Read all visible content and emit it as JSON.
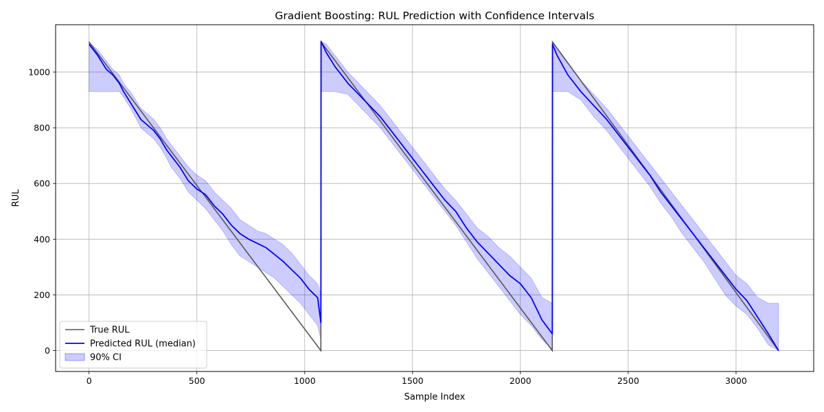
{
  "chart_data": {
    "type": "line",
    "title": "Gradient Boosting: RUL Prediction with Confidence Intervals",
    "xlabel": "Sample Index",
    "ylabel": "RUL",
    "xlim": [
      -155,
      3360
    ],
    "ylim": [
      -75,
      1170
    ],
    "xticks": [
      0,
      500,
      1000,
      1500,
      2000,
      2500,
      3000
    ],
    "yticks": [
      0,
      200,
      400,
      600,
      800,
      1000
    ],
    "grid": true,
    "legend_position": "lower-left",
    "legend": [
      "True RUL",
      "Predicted RUL (median)",
      "90% CI"
    ],
    "series": [
      {
        "name": "True RUL",
        "color": "#555555",
        "x": [
          0,
          1075,
          1076,
          2148,
          2149,
          3197
        ],
        "y": [
          1108,
          0,
          1108,
          0,
          1108,
          0
        ]
      },
      {
        "name": "Predicted RUL (median)",
        "color": "#0000ff",
        "x": [
          0,
          10,
          40,
          80,
          110,
          140,
          160,
          200,
          240,
          270,
          300,
          330,
          360,
          380,
          420,
          460,
          500,
          540,
          580,
          620,
          660,
          700,
          740,
          780,
          820,
          860,
          900,
          940,
          980,
          1020,
          1060,
          1075,
          1076,
          1100,
          1140,
          1200,
          1250,
          1300,
          1350,
          1400,
          1450,
          1500,
          1550,
          1600,
          1650,
          1700,
          1750,
          1800,
          1850,
          1900,
          1950,
          2000,
          2050,
          2100,
          2148,
          2149,
          2170,
          2220,
          2280,
          2340,
          2400,
          2450,
          2500,
          2550,
          2600,
          2650,
          2700,
          2750,
          2800,
          2850,
          2900,
          2950,
          3000,
          3050,
          3100,
          3150,
          3197
        ],
        "y": [
          1100,
          1090,
          1060,
          1010,
          990,
          960,
          930,
          880,
          830,
          810,
          790,
          760,
          720,
          700,
          660,
          610,
          580,
          560,
          520,
          490,
          450,
          420,
          400,
          385,
          370,
          345,
          320,
          290,
          260,
          220,
          190,
          100,
          1110,
          1070,
          1020,
          960,
          920,
          880,
          840,
          790,
          740,
          690,
          640,
          590,
          540,
          500,
          440,
          390,
          350,
          310,
          270,
          240,
          190,
          110,
          60,
          1100,
          1060,
          990,
          930,
          880,
          830,
          780,
          730,
          680,
          630,
          570,
          520,
          470,
          420,
          370,
          320,
          270,
          220,
          180,
          120,
          60,
          0
        ]
      },
      {
        "name": "90% CI",
        "color": "#0000ff",
        "x": [
          0,
          10,
          40,
          80,
          110,
          140,
          160,
          200,
          240,
          270,
          300,
          330,
          360,
          380,
          420,
          460,
          500,
          540,
          580,
          620,
          660,
          700,
          740,
          780,
          820,
          860,
          900,
          940,
          980,
          1020,
          1060,
          1075,
          1076,
          1100,
          1140,
          1200,
          1250,
          1300,
          1350,
          1400,
          1450,
          1500,
          1550,
          1600,
          1650,
          1700,
          1750,
          1800,
          1850,
          1900,
          1950,
          2000,
          2050,
          2100,
          2148,
          2149,
          2170,
          2220,
          2280,
          2340,
          2400,
          2450,
          2500,
          2550,
          2600,
          2650,
          2700,
          2750,
          2800,
          2850,
          2900,
          2950,
          3000,
          3050,
          3100,
          3150,
          3197
        ],
        "lower": [
          930,
          930,
          930,
          930,
          930,
          930,
          910,
          860,
          800,
          780,
          760,
          730,
          690,
          660,
          620,
          570,
          540,
          510,
          470,
          430,
          380,
          340,
          320,
          300,
          280,
          260,
          230,
          200,
          170,
          130,
          90,
          40,
          930,
          930,
          930,
          920,
          880,
          840,
          800,
          750,
          700,
          650,
          600,
          550,
          500,
          450,
          390,
          330,
          280,
          230,
          180,
          130,
          90,
          40,
          5,
          930,
          930,
          930,
          900,
          840,
          790,
          740,
          690,
          640,
          590,
          530,
          480,
          420,
          370,
          320,
          260,
          200,
          160,
          130,
          80,
          20,
          0
        ],
        "upper": [
          1110,
          1100,
          1080,
          1040,
          1010,
          990,
          960,
          920,
          870,
          850,
          830,
          800,
          760,
          740,
          700,
          660,
          630,
          610,
          570,
          540,
          510,
          470,
          450,
          430,
          420,
          400,
          380,
          350,
          310,
          270,
          240,
          200,
          1110,
          1100,
          1060,
          1000,
          960,
          920,
          880,
          830,
          780,
          730,
          680,
          630,
          580,
          540,
          490,
          440,
          410,
          370,
          340,
          300,
          260,
          190,
          170,
          1110,
          1080,
          1030,
          970,
          920,
          870,
          820,
          770,
          720,
          670,
          620,
          570,
          520,
          470,
          420,
          370,
          320,
          270,
          240,
          190,
          170,
          170
        ]
      }
    ]
  }
}
